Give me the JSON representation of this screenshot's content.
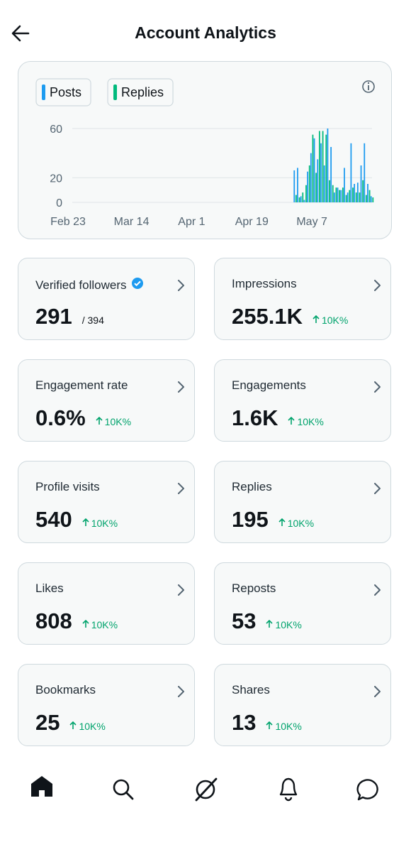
{
  "header": {
    "title": "Account Analytics"
  },
  "chart_data": {
    "type": "bar",
    "categories": [
      "Feb 23",
      null,
      null,
      null,
      null,
      null,
      null,
      null,
      null,
      null,
      null,
      null,
      null,
      null,
      null,
      null,
      null,
      null,
      null,
      "Mar 14",
      null,
      null,
      null,
      null,
      null,
      null,
      null,
      null,
      null,
      null,
      null,
      null,
      null,
      null,
      null,
      null,
      null,
      "Apr 1",
      null,
      null,
      null,
      null,
      null,
      null,
      null,
      null,
      null,
      null,
      null,
      null,
      null,
      null,
      null,
      null,
      null,
      "Apr 19",
      null,
      null,
      null,
      null,
      null,
      null,
      null,
      null,
      null,
      null,
      null,
      null,
      null,
      null,
      null,
      null,
      null,
      "May 7",
      null,
      null,
      null,
      null,
      null,
      null,
      null,
      null,
      null,
      null,
      null,
      null,
      null,
      null,
      null,
      null,
      null,
      null
    ],
    "series": [
      {
        "name": "Posts",
        "color": "#1d9bf0",
        "values": [
          0,
          0,
          0,
          0,
          0,
          0,
          0,
          0,
          0,
          0,
          0,
          0,
          0,
          0,
          0,
          0,
          0,
          0,
          0,
          0,
          0,
          0,
          0,
          0,
          0,
          0,
          0,
          0,
          0,
          0,
          0,
          0,
          0,
          0,
          0,
          0,
          0,
          0,
          0,
          0,
          0,
          0,
          0,
          0,
          0,
          0,
          0,
          0,
          0,
          0,
          0,
          0,
          0,
          0,
          0,
          0,
          0,
          0,
          0,
          0,
          0,
          0,
          0,
          0,
          0,
          0,
          0,
          0,
          26,
          28,
          5,
          2,
          25,
          40,
          52,
          35,
          48,
          30,
          60,
          45,
          8,
          12,
          10,
          28,
          8,
          48,
          15,
          16,
          30,
          48,
          15,
          5
        ]
      },
      {
        "name": "Replies",
        "color": "#00ba7c",
        "values": [
          0,
          0,
          0,
          0,
          0,
          0,
          0,
          0,
          0,
          0,
          0,
          0,
          0,
          0,
          0,
          0,
          0,
          0,
          0,
          0,
          0,
          0,
          0,
          0,
          0,
          0,
          0,
          0,
          0,
          0,
          0,
          0,
          0,
          0,
          0,
          0,
          0,
          0,
          0,
          0,
          0,
          0,
          0,
          0,
          0,
          0,
          0,
          0,
          0,
          0,
          0,
          0,
          0,
          0,
          0,
          0,
          0,
          0,
          0,
          0,
          0,
          0,
          0,
          0,
          0,
          0,
          0,
          0,
          6,
          4,
          8,
          14,
          30,
          55,
          24,
          58,
          58,
          55,
          18,
          14,
          12,
          10,
          12,
          6,
          10,
          12,
          8,
          8,
          18,
          6,
          10,
          4
        ]
      }
    ],
    "ylim": [
      0,
      60
    ],
    "yticks": [
      0,
      20,
      60
    ],
    "grid": true
  },
  "metrics": [
    {
      "label": "Verified followers",
      "value": "291",
      "total": "/ 394"
    },
    {
      "label": "Impressions",
      "value": "255.1K",
      "change": "10K%"
    },
    {
      "label": "Engagement rate",
      "value": "0.6%",
      "change": "10K%"
    },
    {
      "label": "Engagements",
      "value": "1.6K",
      "change": "10K%"
    },
    {
      "label": "Profile visits",
      "value": "540",
      "change": "10K%"
    },
    {
      "label": "Replies",
      "value": "195",
      "change": "10K%"
    },
    {
      "label": "Likes",
      "value": "808",
      "change": "10K%"
    },
    {
      "label": "Reposts",
      "value": "53",
      "change": "10K%"
    },
    {
      "label": "Bookmarks",
      "value": "25",
      "change": "10K%"
    },
    {
      "label": "Shares",
      "value": "13",
      "change": "10K%"
    }
  ]
}
